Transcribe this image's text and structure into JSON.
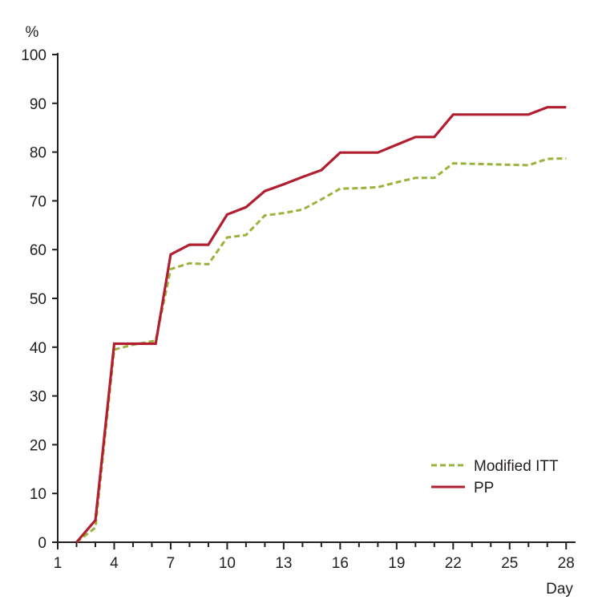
{
  "chart_data": {
    "type": "line",
    "ylabel": "%",
    "xlabel": "Day",
    "xlim": [
      1,
      28.5
    ],
    "ylim": [
      0,
      100
    ],
    "x_ticks": [
      1,
      4,
      7,
      10,
      13,
      16,
      19,
      22,
      25,
      28
    ],
    "x_minor_step": 1,
    "y_ticks": [
      0,
      10,
      20,
      30,
      40,
      50,
      60,
      70,
      80,
      90,
      100
    ],
    "grid": false,
    "legend_position": "bottom-right",
    "series": [
      {
        "name": "Modified ITT",
        "style": "dashed",
        "color": "#9ab33c",
        "points": [
          [
            2,
            0
          ],
          [
            3,
            3
          ],
          [
            4,
            39.5
          ],
          [
            5,
            40.5
          ],
          [
            6,
            41.2
          ],
          [
            6.2,
            41.3
          ],
          [
            7,
            56
          ],
          [
            8,
            57.2
          ],
          [
            9,
            57
          ],
          [
            10,
            62.5
          ],
          [
            11,
            63
          ],
          [
            12,
            67
          ],
          [
            13,
            67.5
          ],
          [
            14,
            68.2
          ],
          [
            15,
            70.3
          ],
          [
            16,
            72.5
          ],
          [
            17,
            72.6
          ],
          [
            18,
            72.8
          ],
          [
            19,
            73.8
          ],
          [
            20,
            74.7
          ],
          [
            21,
            74.7
          ],
          [
            22,
            77.7
          ],
          [
            23,
            77.6
          ],
          [
            24,
            77.5
          ],
          [
            25,
            77.4
          ],
          [
            26,
            77.3
          ],
          [
            27,
            78.6
          ],
          [
            28,
            78.7
          ]
        ]
      },
      {
        "name": "PP",
        "style": "solid",
        "color": "#b01e30",
        "points": [
          [
            2,
            0
          ],
          [
            3,
            4.5
          ],
          [
            4,
            40.7
          ],
          [
            5,
            40.7
          ],
          [
            6.2,
            40.7
          ],
          [
            7,
            59
          ],
          [
            8,
            61
          ],
          [
            9,
            61
          ],
          [
            10,
            67.2
          ],
          [
            11,
            68.7
          ],
          [
            12,
            72
          ],
          [
            13,
            73.4
          ],
          [
            14,
            74.9
          ],
          [
            15,
            76.3
          ],
          [
            16,
            79.9
          ],
          [
            17,
            79.9
          ],
          [
            18,
            79.9
          ],
          [
            19,
            81.5
          ],
          [
            20,
            83.1
          ],
          [
            21,
            83.1
          ],
          [
            22,
            87.7
          ],
          [
            23,
            87.7
          ],
          [
            24,
            87.7
          ],
          [
            25,
            87.7
          ],
          [
            26,
            87.7
          ],
          [
            27,
            89.2
          ],
          [
            28,
            89.2
          ]
        ]
      }
    ]
  }
}
